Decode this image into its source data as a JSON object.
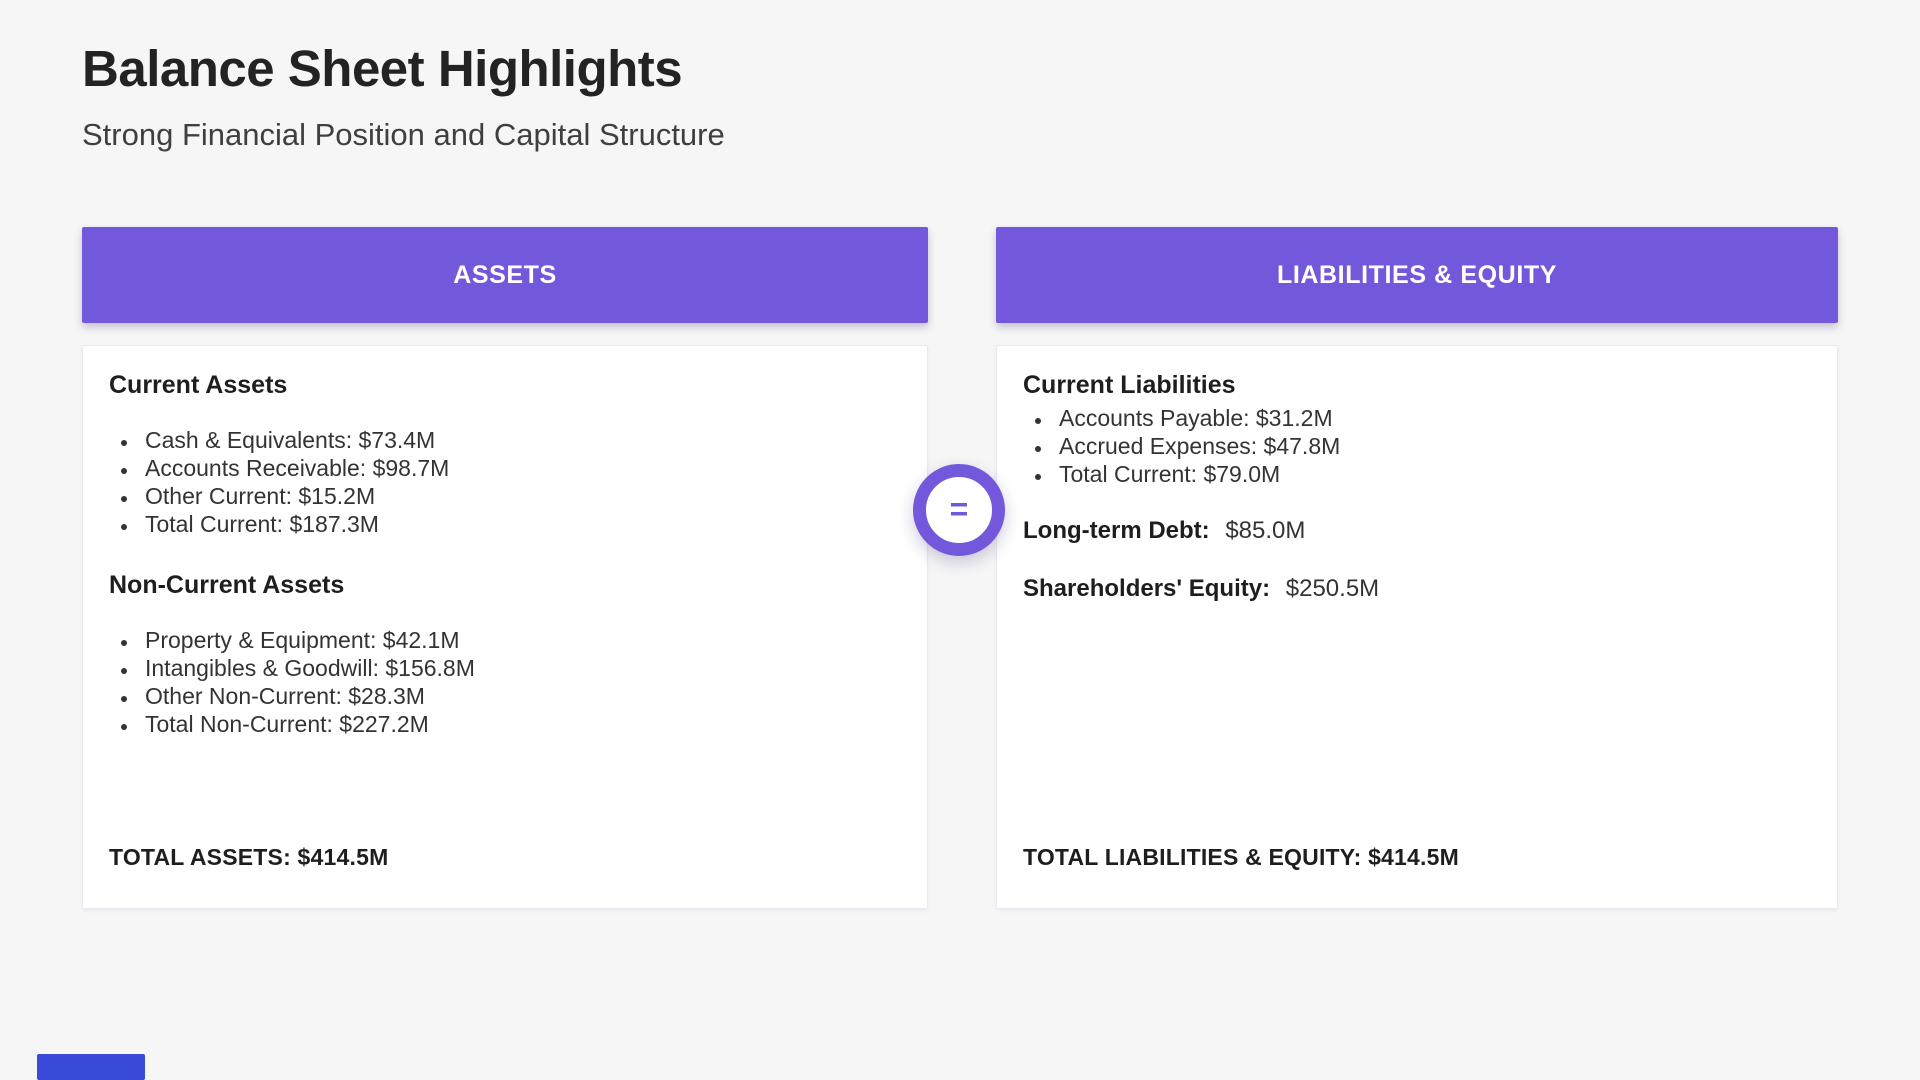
{
  "page": {
    "title": "Balance Sheet Highlights",
    "subtitle": "Strong Financial Position and Capital Structure"
  },
  "assets_card": {
    "header": "ASSETS",
    "sections": [
      {
        "heading": "Current Assets",
        "items": [
          "Cash & Equivalents: $73.4M",
          "Accounts Receivable: $98.7M",
          "Other Current: $15.2M",
          "Total Current: $187.3M"
        ]
      },
      {
        "heading": "Non-Current Assets",
        "items": [
          "Property & Equipment: $42.1M",
          "Intangibles & Goodwill: $156.8M",
          "Other Non-Current: $28.3M",
          "Total Non-Current: $227.2M"
        ]
      }
    ],
    "total": "TOTAL ASSETS: $414.5M"
  },
  "liabilities_card": {
    "header": "LIABILITIES & EQUITY",
    "sections": [
      {
        "heading": "Current Liabilities",
        "items": [
          "Accounts Payable: $31.2M",
          "Accrued Expenses: $47.8M",
          "Total Current: $79.0M"
        ]
      }
    ],
    "lines": [
      {
        "label": "Long-term Debt:",
        "value": "$85.0M"
      },
      {
        "label": "Shareholders' Equity:",
        "value": "$250.5M"
      }
    ],
    "total": "TOTAL LIABILITIES & EQUITY: $414.5M"
  },
  "equals_badge": {
    "symbol": "="
  },
  "colors": {
    "accent_purple": "#7458DB",
    "background": "#F6F6F7",
    "card_background": "#FFFFFF",
    "card_border": "#E9E9F0",
    "title_text": "#232323",
    "body_text": "#333333",
    "artifact_blue": "#3A4AD9"
  }
}
